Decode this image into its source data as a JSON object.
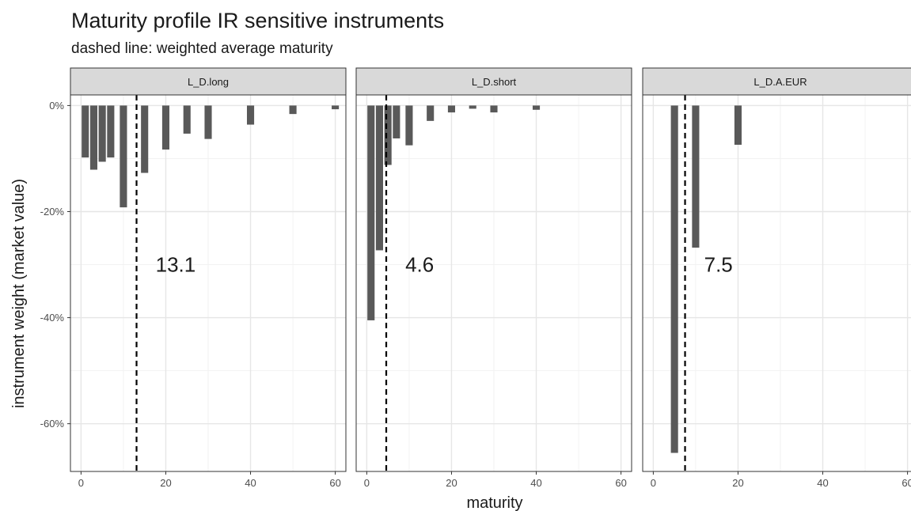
{
  "chart_data": {
    "type": "bar",
    "title": "Maturity profile IR sensitive instruments",
    "subtitle": "dashed line: weighted average maturity",
    "xlabel": "maturity",
    "ylabel": "instrument weight (market value)",
    "xlim": [
      -2.5,
      62.5
    ],
    "ylim": [
      -69,
      2
    ],
    "x_ticks": [
      0,
      20,
      40,
      60
    ],
    "y_ticks": [
      0,
      -20,
      -40,
      -60
    ],
    "y_tick_labels": [
      "0%",
      "-20%",
      "-40%",
      "-60%"
    ],
    "grid": true,
    "bar_color": "#595959",
    "panels": [
      {
        "name": "L_D.long",
        "weighted_avg_maturity": 13.1,
        "annotation": "13.1",
        "bars": [
          {
            "x": 1,
            "y": -9.8
          },
          {
            "x": 3,
            "y": -12.1
          },
          {
            "x": 5,
            "y": -10.6
          },
          {
            "x": 7,
            "y": -9.8
          },
          {
            "x": 10,
            "y": -19.2
          },
          {
            "x": 15,
            "y": -12.7
          },
          {
            "x": 20,
            "y": -8.3
          },
          {
            "x": 25,
            "y": -5.3
          },
          {
            "x": 30,
            "y": -6.3
          },
          {
            "x": 40,
            "y": -3.6
          },
          {
            "x": 50,
            "y": -1.6
          },
          {
            "x": 60,
            "y": -0.7
          }
        ]
      },
      {
        "name": "L_D.short",
        "weighted_avg_maturity": 4.6,
        "annotation": "4.6",
        "bars": [
          {
            "x": 1,
            "y": -40.5
          },
          {
            "x": 3,
            "y": -27.3
          },
          {
            "x": 5,
            "y": -11.2
          },
          {
            "x": 7,
            "y": -6.2
          },
          {
            "x": 10,
            "y": -7.5
          },
          {
            "x": 15,
            "y": -2.9
          },
          {
            "x": 20,
            "y": -1.3
          },
          {
            "x": 25,
            "y": -0.6
          },
          {
            "x": 30,
            "y": -1.3
          },
          {
            "x": 40,
            "y": -0.8
          }
        ]
      },
      {
        "name": "L_D.A.EUR",
        "weighted_avg_maturity": 7.5,
        "annotation": "7.5",
        "bars": [
          {
            "x": 5,
            "y": -65.5
          },
          {
            "x": 10,
            "y": -26.8
          },
          {
            "x": 20,
            "y": -7.4
          }
        ]
      }
    ]
  }
}
